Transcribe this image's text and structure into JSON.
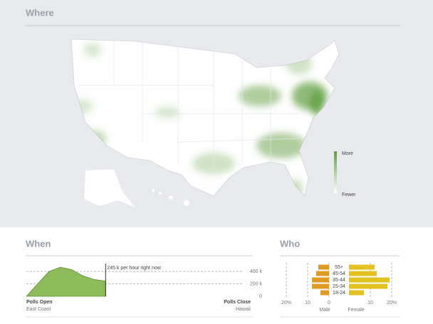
{
  "chart_data": [
    {
      "type": "map",
      "title": "Where",
      "legend_high": "More",
      "legend_low": "Fewer",
      "color": "#5f9e3e"
    },
    {
      "type": "area",
      "title": "When",
      "annotation": "245 k per hour right now",
      "start_label": "Polls Open",
      "start_sublabel": "East Coast",
      "end_label": "Polls Close",
      "end_sublabel": "Hawaii",
      "x": [
        0,
        1,
        2,
        3,
        4,
        5,
        6,
        7
      ],
      "xlim": [
        0,
        20
      ],
      "values": [
        0,
        200,
        400,
        470,
        430,
        330,
        270,
        245
      ],
      "color": "#8dbb5a",
      "ylim": [
        0,
        470
      ],
      "yticks": [
        0,
        {
          "value": 200,
          "label": "200 k"
        },
        {
          "value": 400,
          "label": "400 k"
        }
      ],
      "grid": true
    },
    {
      "type": "pyramid",
      "title": "Who",
      "categories": [
        "55+",
        "45-54",
        "35-44",
        "25-34",
        "18-24"
      ],
      "series": [
        {
          "name": "Male",
          "color": "#e39a23",
          "values": [
            5,
            6,
            8,
            8,
            4
          ]
        },
        {
          "name": "Female",
          "color": "#e3c323",
          "values": [
            12,
            13,
            19,
            18,
            7
          ]
        }
      ],
      "xlim": [
        0,
        20
      ],
      "xticks_left": [
        {
          "value": 20,
          "label": "20%"
        },
        10,
        0
      ],
      "xticks_right": [
        10,
        {
          "value": 20,
          "label": "20%"
        }
      ],
      "grid": true
    }
  ]
}
